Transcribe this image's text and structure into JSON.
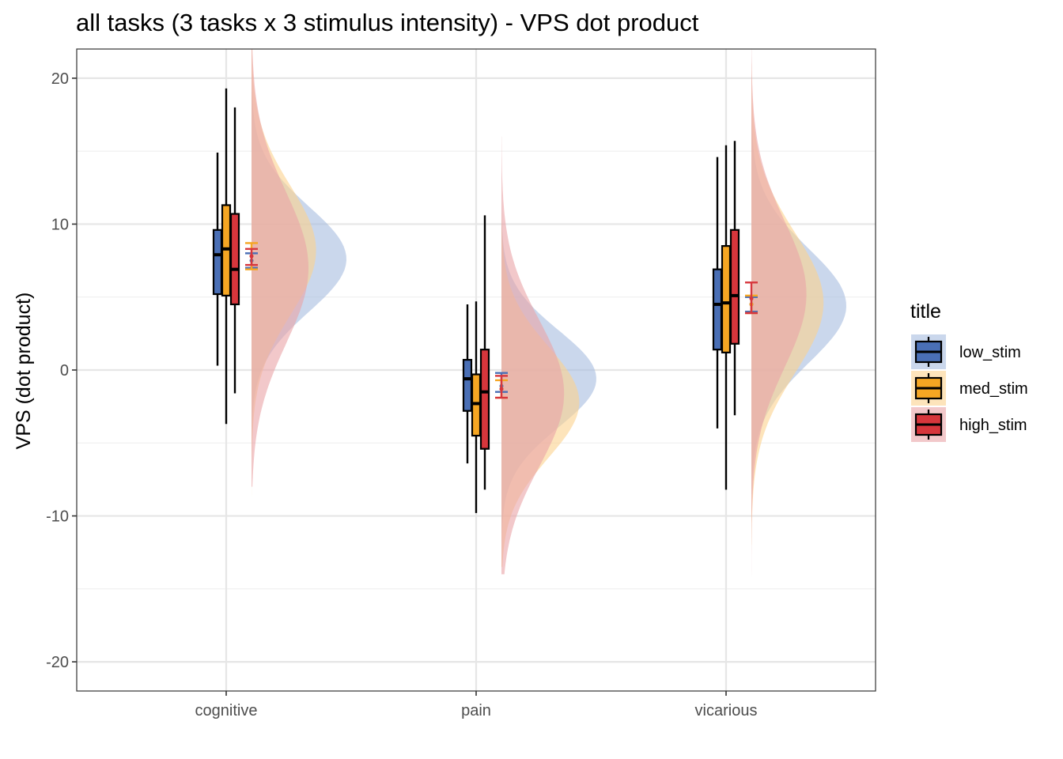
{
  "chart_data": {
    "type": "raincloud",
    "title": "all tasks  (3 tasks x 3 stimulus intensity) - VPS dot product",
    "xlabel": "",
    "ylabel": "VPS (dot product)",
    "ylim": [
      -22,
      22
    ],
    "y_ticks": [
      -20,
      -10,
      0,
      10,
      20
    ],
    "y_tick_labels": [
      "-20",
      "-10",
      "0",
      "10",
      "20"
    ],
    "categories": [
      "cognitive",
      "pain",
      "vicarious"
    ],
    "grid": true,
    "legend": {
      "title": "title",
      "position": "right",
      "entries": [
        "low_stim",
        "med_stim",
        "high_stim"
      ]
    },
    "series": [
      {
        "name": "low_stim",
        "color": "#4a6fb5",
        "cloud_color": "#a7bcdf",
        "boxes": [
          {
            "whisker_low": 0.3,
            "q1": 5.2,
            "median": 7.9,
            "q3": 9.6,
            "whisker_high": 14.9
          },
          {
            "whisker_low": -6.4,
            "q1": -2.8,
            "median": -0.6,
            "q3": 0.7,
            "whisker_high": 4.5
          },
          {
            "whisker_low": -4.0,
            "q1": 1.4,
            "median": 4.5,
            "q3": 6.9,
            "whisker_high": 14.6
          }
        ],
        "mean_se": [
          {
            "mean": 7.5,
            "lower": 7.0,
            "upper": 8.0
          },
          {
            "mean": -1.1,
            "lower": -1.5,
            "upper": -0.2
          },
          {
            "mean": 4.5,
            "lower": 4.0,
            "upper": 5.0
          }
        ],
        "density": [
          {
            "center": 7.6,
            "sd": 3.6,
            "width": 1.0,
            "min": -7.0,
            "max": 22
          },
          {
            "center": -0.6,
            "sd": 3.3,
            "width": 1.0,
            "min": -13.0,
            "max": 12.0
          },
          {
            "center": 4.4,
            "sd": 3.9,
            "width": 1.0,
            "min": -8.5,
            "max": 19.0
          }
        ]
      },
      {
        "name": "med_stim",
        "color": "#f5a623",
        "cloud_color": "#fbd28d",
        "boxes": [
          {
            "whisker_low": -3.7,
            "q1": 5.1,
            "median": 8.3,
            "q3": 11.3,
            "whisker_high": 19.3
          },
          {
            "whisker_low": -9.8,
            "q1": -4.5,
            "median": -2.3,
            "q3": -0.3,
            "whisker_high": 4.7
          },
          {
            "whisker_low": -8.2,
            "q1": 1.2,
            "median": 4.6,
            "q3": 8.5,
            "whisker_high": 15.4
          }
        ],
        "mean_se": [
          {
            "mean": 7.8,
            "lower": 6.9,
            "upper": 8.7
          },
          {
            "mean": -1.3,
            "lower": -1.9,
            "upper": -0.7
          },
          {
            "mean": 4.5,
            "lower": 3.9,
            "upper": 5.1
          }
        ],
        "density": [
          {
            "center": 8.2,
            "sd": 4.4,
            "width": 0.68,
            "min": -9.5,
            "max": 22
          },
          {
            "center": -2.2,
            "sd": 3.8,
            "width": 0.82,
            "min": -13.5,
            "max": 13.0
          },
          {
            "center": 4.6,
            "sd": 4.8,
            "width": 0.76,
            "min": -12.0,
            "max": 21.0
          }
        ]
      },
      {
        "name": "high_stim",
        "color": "#d7363c",
        "cloud_color": "#e9a4a6",
        "boxes": [
          {
            "whisker_low": -1.6,
            "q1": 4.5,
            "median": 6.9,
            "q3": 10.7,
            "whisker_high": 18.0
          },
          {
            "whisker_low": -8.2,
            "q1": -5.4,
            "median": -1.5,
            "q3": 1.4,
            "whisker_high": 10.6
          },
          {
            "whisker_low": -3.1,
            "q1": 1.8,
            "median": 5.1,
            "q3": 9.6,
            "whisker_high": 15.7
          }
        ],
        "mean_se": [
          {
            "mean": 7.8,
            "lower": 7.2,
            "upper": 8.3
          },
          {
            "mean": -1.3,
            "lower": -1.9,
            "upper": -0.4
          },
          {
            "mean": 4.9,
            "lower": 3.9,
            "upper": 6.0
          }
        ],
        "density": [
          {
            "center": 7.0,
            "sd": 5.2,
            "width": 0.6,
            "min": -8.0,
            "max": 22
          },
          {
            "center": -1.6,
            "sd": 5.0,
            "width": 0.66,
            "min": -14.0,
            "max": 16.0
          },
          {
            "center": 5.2,
            "sd": 5.0,
            "width": 0.58,
            "min": -21.5,
            "max": 22
          }
        ]
      }
    ]
  }
}
